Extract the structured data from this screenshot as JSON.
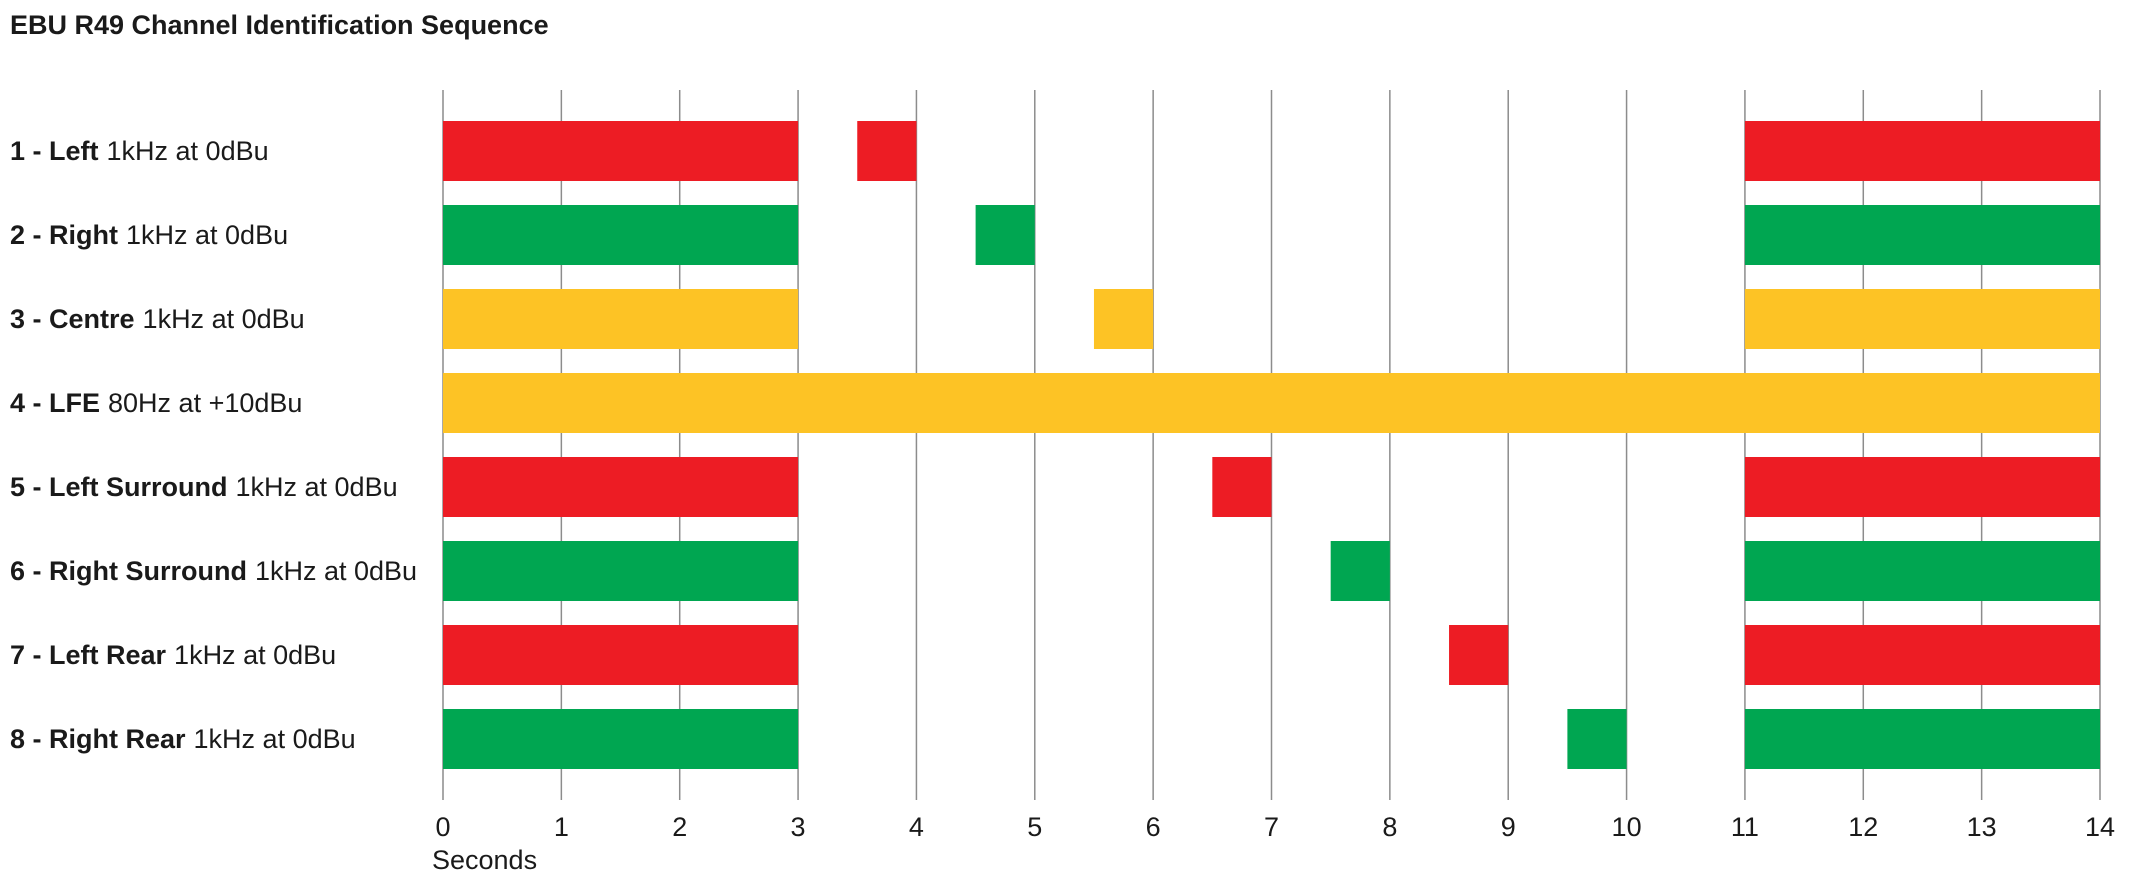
{
  "chart_data": {
    "type": "bar",
    "subtype": "gantt-timeline",
    "title": "EBU R49 Channel Identification Sequence",
    "xlabel": "Seconds",
    "ylabel": "",
    "xlim": [
      0,
      14
    ],
    "xticks": [
      "0",
      "1",
      "2",
      "3",
      "4",
      "5",
      "6",
      "7",
      "8",
      "9",
      "10",
      "11",
      "12",
      "13",
      "14"
    ],
    "grid": true,
    "colors": {
      "red": "#ed1c24",
      "green": "#00a651",
      "amber": "#fdc325"
    },
    "channels": [
      {
        "name": "1 - Left",
        "desc": "1kHz at 0dBu",
        "color": "#ed1c24",
        "segments": [
          [
            0,
            3
          ],
          [
            3.5,
            4
          ],
          [
            11,
            14
          ]
        ]
      },
      {
        "name": "2 - Right",
        "desc": "1kHz at 0dBu",
        "color": "#00a651",
        "segments": [
          [
            0,
            3
          ],
          [
            4.5,
            5
          ],
          [
            11,
            14
          ]
        ]
      },
      {
        "name": "3 - Centre",
        "desc": "1kHz at 0dBu",
        "color": "#fdc325",
        "segments": [
          [
            0,
            3
          ],
          [
            5.5,
            6
          ],
          [
            11,
            14
          ]
        ]
      },
      {
        "name": "4 - LFE",
        "desc": "80Hz at +10dBu",
        "color": "#fdc325",
        "segments": [
          [
            0,
            14
          ]
        ]
      },
      {
        "name": "5 - Left Surround",
        "desc": "1kHz at 0dBu",
        "color": "#ed1c24",
        "segments": [
          [
            0,
            3
          ],
          [
            6.5,
            7
          ],
          [
            11,
            14
          ]
        ]
      },
      {
        "name": "6 - Right Surround",
        "desc": "1kHz at 0dBu",
        "color": "#00a651",
        "segments": [
          [
            0,
            3
          ],
          [
            7.5,
            8
          ],
          [
            11,
            14
          ]
        ]
      },
      {
        "name": "7 - Left Rear",
        "desc": "1kHz at 0dBu",
        "color": "#ed1c24",
        "segments": [
          [
            0,
            3
          ],
          [
            8.5,
            9
          ],
          [
            11,
            14
          ]
        ]
      },
      {
        "name": "8 - Right Rear",
        "desc": "1kHz at 0dBu",
        "color": "#00a651",
        "segments": [
          [
            0,
            3
          ],
          [
            9.5,
            10
          ],
          [
            11,
            14
          ]
        ]
      }
    ]
  }
}
